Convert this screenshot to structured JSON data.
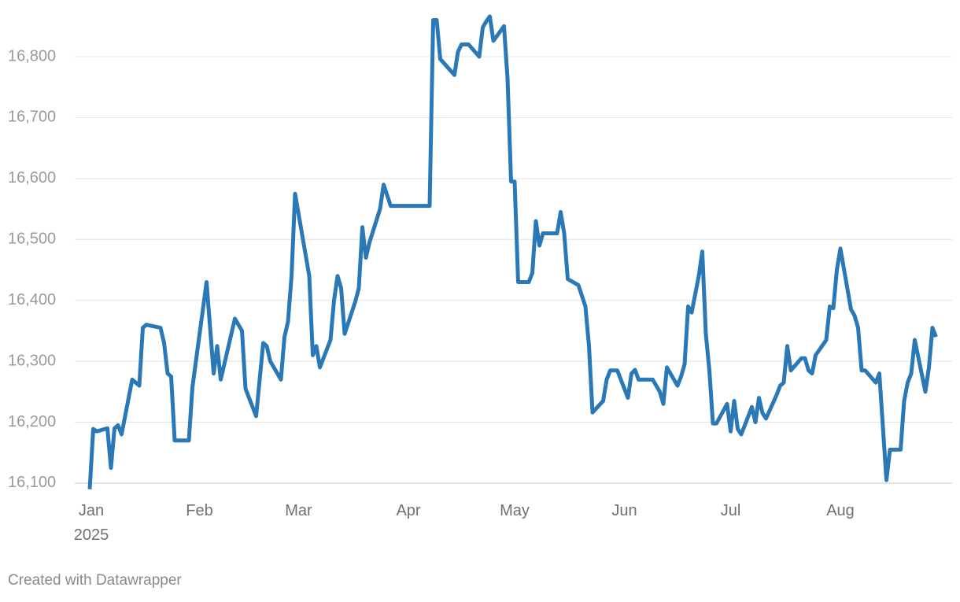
{
  "chart_data": {
    "type": "line",
    "x": [
      "2025-01-01",
      "2025-01-02",
      "2025-01-03",
      "2025-01-06",
      "2025-01-07",
      "2025-01-08",
      "2025-01-09",
      "2025-01-10",
      "2025-01-13",
      "2025-01-15",
      "2025-01-16",
      "2025-01-17",
      "2025-01-21",
      "2025-01-22",
      "2025-01-23",
      "2025-01-24",
      "2025-01-25",
      "2025-01-29",
      "2025-01-30",
      "2025-02-03",
      "2025-02-05",
      "2025-02-06",
      "2025-02-07",
      "2025-02-11",
      "2025-02-13",
      "2025-02-14",
      "2025-02-17",
      "2025-02-19",
      "2025-02-20",
      "2025-02-21",
      "2025-02-24",
      "2025-02-25",
      "2025-02-26",
      "2025-02-27",
      "2025-02-28",
      "2025-03-04",
      "2025-03-05",
      "2025-03-06",
      "2025-03-07",
      "2025-03-10",
      "2025-03-11",
      "2025-03-12",
      "2025-03-13",
      "2025-03-14",
      "2025-03-17",
      "2025-03-18",
      "2025-03-19",
      "2025-03-20",
      "2025-03-21",
      "2025-03-24",
      "2025-03-25",
      "2025-03-27",
      "2025-04-07",
      "2025-04-08",
      "2025-04-09",
      "2025-04-10",
      "2025-04-14",
      "2025-04-15",
      "2025-04-16",
      "2025-04-18",
      "2025-04-21",
      "2025-04-22",
      "2025-04-23",
      "2025-04-24",
      "2025-04-25",
      "2025-04-28",
      "2025-04-29",
      "2025-04-30",
      "2025-05-01",
      "2025-05-02",
      "2025-05-05",
      "2025-05-06",
      "2025-05-07",
      "2025-05-08",
      "2025-05-09",
      "2025-05-13",
      "2025-05-14",
      "2025-05-15",
      "2025-05-16",
      "2025-05-19",
      "2025-05-21",
      "2025-05-22",
      "2025-05-23",
      "2025-05-26",
      "2025-05-27",
      "2025-05-28",
      "2025-05-30",
      "2025-06-02",
      "2025-06-03",
      "2025-06-04",
      "2025-06-05",
      "2025-06-09",
      "2025-06-10",
      "2025-06-11",
      "2025-06-12",
      "2025-06-13",
      "2025-06-16",
      "2025-06-17",
      "2025-06-18",
      "2025-06-19",
      "2025-06-20",
      "2025-06-22",
      "2025-06-23",
      "2025-06-24",
      "2025-06-25",
      "2025-06-26",
      "2025-06-27",
      "2025-06-30",
      "2025-07-01",
      "2025-07-02",
      "2025-07-03",
      "2025-07-04",
      "2025-07-07",
      "2025-07-08",
      "2025-07-09",
      "2025-07-10",
      "2025-07-11",
      "2025-07-14",
      "2025-07-15",
      "2025-07-16",
      "2025-07-17",
      "2025-07-18",
      "2025-07-21",
      "2025-07-22",
      "2025-07-23",
      "2025-07-24",
      "2025-07-25",
      "2025-07-28",
      "2025-07-29",
      "2025-07-30",
      "2025-07-31",
      "2025-08-01",
      "2025-08-04",
      "2025-08-05",
      "2025-08-06",
      "2025-08-07",
      "2025-08-08",
      "2025-08-11",
      "2025-08-12",
      "2025-08-14",
      "2025-08-15",
      "2025-08-18",
      "2025-08-19",
      "2025-08-20",
      "2025-08-21",
      "2025-08-22",
      "2025-08-25",
      "2025-08-26",
      "2025-08-27",
      "2025-08-28"
    ],
    "series": [
      {
        "color": "#2a79b6",
        "values": [
          16090,
          16189,
          16185,
          16190,
          16125,
          16190,
          16195,
          16180,
          16270,
          16260,
          16355,
          16360,
          16355,
          16330,
          16280,
          16275,
          16170,
          16170,
          16257,
          16430,
          16280,
          16325,
          16270,
          16370,
          16350,
          16255,
          16210,
          16330,
          16325,
          16300,
          16270,
          16340,
          16365,
          16440,
          16575,
          16440,
          16310,
          16325,
          16290,
          16335,
          16400,
          16440,
          16420,
          16345,
          16398,
          16420,
          16520,
          16470,
          16495,
          16550,
          16590,
          16555,
          16555,
          16860,
          16860,
          16796,
          16770,
          16808,
          16820,
          16820,
          16800,
          16848,
          16858,
          16866,
          16826,
          16850,
          16764,
          16595,
          16595,
          16430,
          16430,
          16445,
          16530,
          16490,
          16510,
          16510,
          16545,
          16510,
          16435,
          16425,
          16390,
          16325,
          16216,
          16235,
          16270,
          16285,
          16285,
          16240,
          16280,
          16286,
          16270,
          16270,
          16260,
          16250,
          16230,
          16290,
          16260,
          16275,
          16295,
          16390,
          16380,
          16440,
          16480,
          16345,
          16285,
          16198,
          16198,
          16230,
          16185,
          16235,
          16189,
          16180,
          16225,
          16200,
          16240,
          16215,
          16206,
          16245,
          16260,
          16265,
          16325,
          16285,
          16305,
          16305,
          16285,
          16280,
          16310,
          16335,
          16390,
          16387,
          16450,
          16485,
          16385,
          16375,
          16355,
          16285,
          16285,
          16265,
          16280,
          16105,
          16155,
          16155,
          16235,
          16265,
          16280,
          16335,
          16250,
          16290,
          16355,
          16340
        ]
      }
    ],
    "xlim": [
      "2025-01-01",
      "2025-08-31"
    ],
    "xticks": [
      {
        "value": "2025-01-01",
        "label": "Jan"
      },
      {
        "value": "2025-02-01",
        "label": "Feb"
      },
      {
        "value": "2025-03-01",
        "label": "Mar"
      },
      {
        "value": "2025-04-01",
        "label": "Apr"
      },
      {
        "value": "2025-05-01",
        "label": "May"
      },
      {
        "value": "2025-06-01",
        "label": "Jun"
      },
      {
        "value": "2025-07-01",
        "label": "Jul"
      },
      {
        "value": "2025-08-01",
        "label": "Aug"
      }
    ],
    "x_year_label": "2025",
    "ylim": [
      16090,
      16870
    ],
    "yticks": [
      {
        "value": 16100,
        "label": "16,100"
      },
      {
        "value": 16200,
        "label": "16,200"
      },
      {
        "value": 16300,
        "label": "16,300"
      },
      {
        "value": 16400,
        "label": "16,400"
      },
      {
        "value": 16500,
        "label": "16,500"
      },
      {
        "value": 16600,
        "label": "16,600"
      },
      {
        "value": 16700,
        "label": "16,700"
      },
      {
        "value": 16800,
        "label": "16,800"
      }
    ],
    "grid": true,
    "footer": "Created with Datawrapper"
  }
}
